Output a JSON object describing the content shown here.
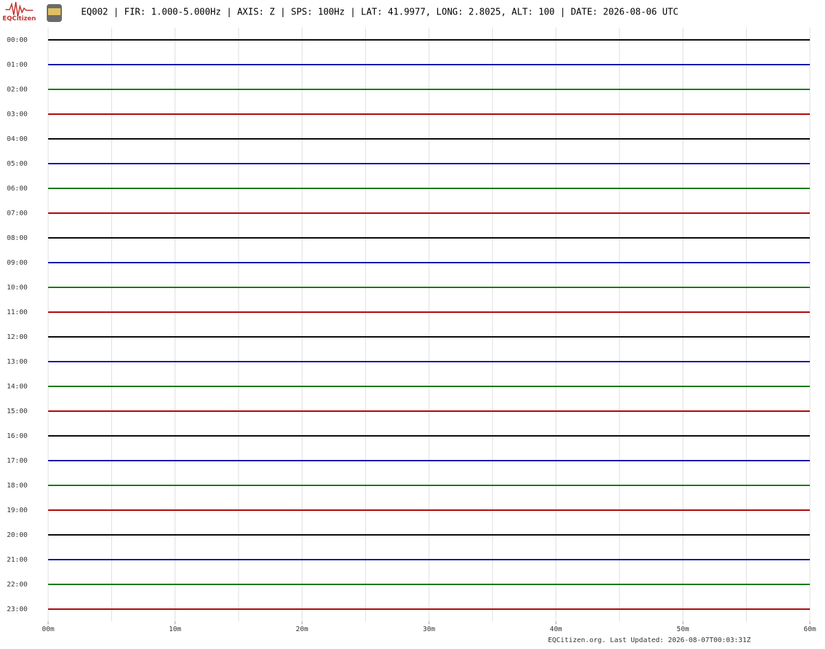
{
  "header": {
    "logo_text": "EQCitizen",
    "title": "EQ002 | FIR: 1.000-5.000Hz | AXIS: Z | SPS: 100Hz | LAT: 41.9977, LONG: 2.8025, ALT: 100 | DATE: 2026-08-06 UTC"
  },
  "chart_data": {
    "type": "helicorder",
    "categories": [
      "00:00",
      "01:00",
      "02:00",
      "03:00",
      "04:00",
      "05:00",
      "06:00",
      "07:00",
      "08:00",
      "09:00",
      "10:00",
      "11:00",
      "12:00",
      "13:00",
      "14:00",
      "15:00",
      "16:00",
      "17:00",
      "18:00",
      "19:00",
      "20:00",
      "21:00",
      "22:00",
      "23:00"
    ],
    "row_colors": [
      "#000000",
      "#0000aa",
      "#007700",
      "#aa0000"
    ],
    "xlim": [
      0,
      60
    ],
    "xticks": [
      {
        "value": 0,
        "label": "00m"
      },
      {
        "value": 10,
        "label": "10m"
      },
      {
        "value": 20,
        "label": "20m"
      },
      {
        "value": 30,
        "label": "30m"
      },
      {
        "value": 40,
        "label": "40m"
      },
      {
        "value": 50,
        "label": "50m"
      },
      {
        "value": 60,
        "label": "60m"
      }
    ],
    "grid_x": [
      0,
      5,
      10,
      15,
      20,
      25,
      30,
      35,
      40,
      45,
      50,
      55,
      60
    ],
    "grid": true
  },
  "footer": {
    "text": "EQCitizen.org. Last Updated: 2026-08-07T00:03:31Z"
  }
}
